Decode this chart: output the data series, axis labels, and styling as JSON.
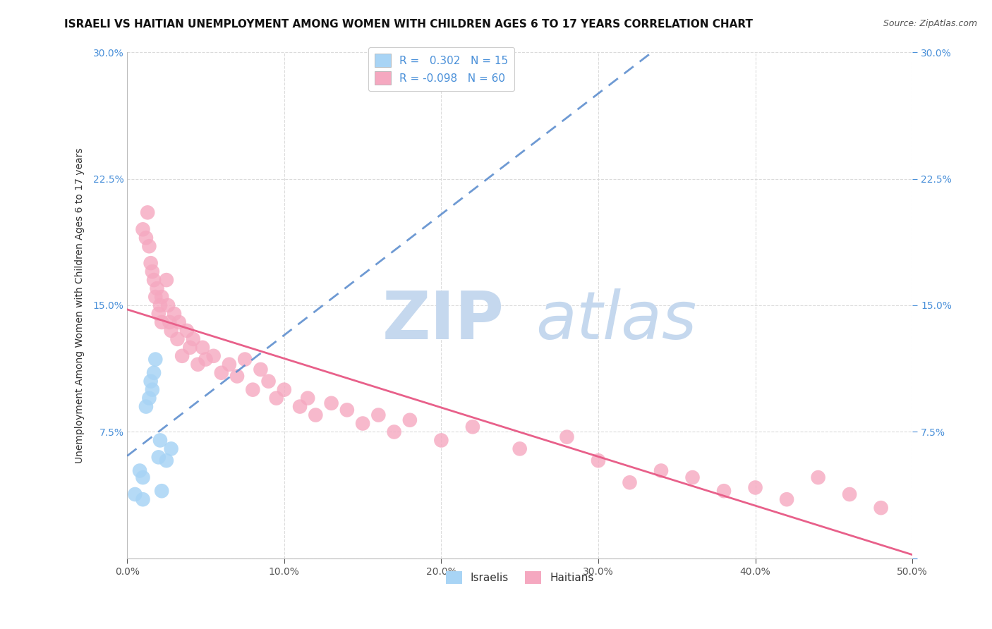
{
  "title": "ISRAELI VS HAITIAN UNEMPLOYMENT AMONG WOMEN WITH CHILDREN AGES 6 TO 17 YEARS CORRELATION CHART",
  "source": "Source: ZipAtlas.com",
  "ylabel": "Unemployment Among Women with Children Ages 6 to 17 years",
  "xlabel": "",
  "xlim": [
    0.0,
    0.5
  ],
  "ylim": [
    0.0,
    0.3
  ],
  "xticks": [
    0.0,
    0.1,
    0.2,
    0.3,
    0.4,
    0.5
  ],
  "yticks": [
    0.0,
    0.075,
    0.15,
    0.225,
    0.3
  ],
  "xticklabels": [
    "0.0%",
    "10.0%",
    "20.0%",
    "30.0%",
    "40.0%",
    "50.0%"
  ],
  "yticklabels": [
    "",
    "7.5%",
    "15.0%",
    "22.5%",
    "30.0%"
  ],
  "israeli_R": 0.302,
  "israeli_N": 15,
  "haitian_R": -0.098,
  "haitian_N": 60,
  "israeli_color": "#a8d4f5",
  "haitian_color": "#f5a8c0",
  "israeli_line_color": "#5588cc",
  "haitian_line_color": "#e8608a",
  "background_color": "#ffffff",
  "grid_color": "#d8d8d8",
  "israeli_x": [
    0.005,
    0.008,
    0.01,
    0.01,
    0.012,
    0.014,
    0.015,
    0.016,
    0.017,
    0.018,
    0.02,
    0.021,
    0.022,
    0.025,
    0.028
  ],
  "israeli_y": [
    0.038,
    0.052,
    0.035,
    0.048,
    0.09,
    0.095,
    0.105,
    0.1,
    0.11,
    0.118,
    0.06,
    0.07,
    0.04,
    0.058,
    0.065
  ],
  "haitian_x": [
    0.01,
    0.012,
    0.013,
    0.014,
    0.015,
    0.016,
    0.017,
    0.018,
    0.019,
    0.02,
    0.021,
    0.022,
    0.022,
    0.025,
    0.026,
    0.027,
    0.028,
    0.03,
    0.032,
    0.033,
    0.035,
    0.038,
    0.04,
    0.042,
    0.045,
    0.048,
    0.05,
    0.055,
    0.06,
    0.065,
    0.07,
    0.075,
    0.08,
    0.085,
    0.09,
    0.095,
    0.1,
    0.11,
    0.115,
    0.12,
    0.13,
    0.14,
    0.15,
    0.16,
    0.17,
    0.18,
    0.2,
    0.22,
    0.25,
    0.28,
    0.3,
    0.32,
    0.34,
    0.36,
    0.38,
    0.4,
    0.42,
    0.44,
    0.46,
    0.48
  ],
  "haitian_y": [
    0.195,
    0.19,
    0.205,
    0.185,
    0.175,
    0.17,
    0.165,
    0.155,
    0.16,
    0.145,
    0.15,
    0.14,
    0.155,
    0.165,
    0.15,
    0.14,
    0.135,
    0.145,
    0.13,
    0.14,
    0.12,
    0.135,
    0.125,
    0.13,
    0.115,
    0.125,
    0.118,
    0.12,
    0.11,
    0.115,
    0.108,
    0.118,
    0.1,
    0.112,
    0.105,
    0.095,
    0.1,
    0.09,
    0.095,
    0.085,
    0.092,
    0.088,
    0.08,
    0.085,
    0.075,
    0.082,
    0.07,
    0.078,
    0.065,
    0.072,
    0.058,
    0.045,
    0.052,
    0.048,
    0.04,
    0.042,
    0.035,
    0.048,
    0.038,
    0.03
  ],
  "watermark_zip": "ZIP",
  "watermark_atlas": "atlas",
  "watermark_color": "#c5d8ee",
  "title_fontsize": 11,
  "source_fontsize": 9,
  "axis_label_fontsize": 10,
  "tick_fontsize": 10,
  "legend_fontsize": 11
}
